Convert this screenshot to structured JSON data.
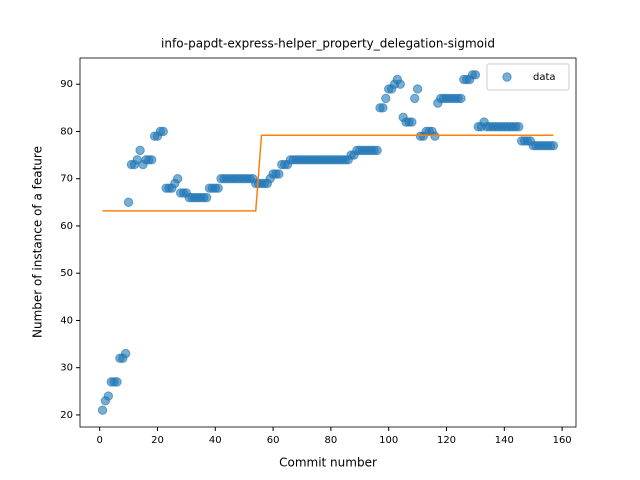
{
  "chart_data": {
    "type": "scatter",
    "title": "info-papdt-express-helper_property_delegation-sigmoid",
    "xlabel": "Commit number",
    "ylabel": "Number of instance of a feature",
    "xlim": [
      -6.8,
      164.8
    ],
    "ylim": [
      17.45,
      95.55
    ],
    "xticks": [
      0,
      20,
      40,
      60,
      80,
      100,
      120,
      140,
      160
    ],
    "yticks": [
      20,
      30,
      40,
      50,
      60,
      70,
      80,
      90
    ],
    "legend": "upper right",
    "series": [
      {
        "name": "data",
        "type": "scatter",
        "color": "#1f77b4",
        "x": [
          1,
          2,
          3,
          4,
          5,
          6,
          7,
          8,
          9,
          10,
          11,
          12,
          13,
          14,
          15,
          16,
          17,
          18,
          19,
          20,
          21,
          22,
          23,
          24,
          25,
          26,
          27,
          28,
          29,
          30,
          31,
          32,
          33,
          34,
          35,
          36,
          37,
          38,
          39,
          40,
          41,
          42,
          43,
          44,
          45,
          46,
          47,
          48,
          49,
          50,
          51,
          52,
          53,
          54,
          55,
          56,
          57,
          58,
          59,
          60,
          61,
          62,
          63,
          64,
          65,
          66,
          67,
          68,
          69,
          70,
          71,
          72,
          73,
          74,
          75,
          76,
          77,
          78,
          79,
          80,
          81,
          82,
          83,
          84,
          85,
          86,
          87,
          88,
          89,
          90,
          91,
          92,
          93,
          94,
          95,
          96,
          97,
          98,
          99,
          100,
          101,
          102,
          103,
          104,
          105,
          106,
          107,
          108,
          109,
          110,
          111,
          112,
          113,
          114,
          115,
          116,
          117,
          118,
          119,
          120,
          121,
          122,
          123,
          124,
          125,
          126,
          127,
          128,
          129,
          130,
          131,
          132,
          133,
          134,
          135,
          136,
          137,
          138,
          139,
          140,
          141,
          142,
          143,
          144,
          145,
          146,
          147,
          148,
          149,
          150,
          151,
          152,
          153,
          154,
          155,
          156,
          157
        ],
        "values": [
          21,
          23,
          24,
          27,
          27,
          27,
          32,
          32,
          33,
          65,
          73,
          73,
          74,
          76,
          73,
          74,
          74,
          74,
          79,
          79,
          80,
          80,
          68,
          68,
          68,
          69,
          70,
          67,
          67,
          67,
          66,
          66,
          66,
          66,
          66,
          66,
          66,
          68,
          68,
          68,
          68,
          70,
          70,
          70,
          70,
          70,
          70,
          70,
          70,
          70,
          70,
          70,
          70,
          69,
          69,
          69,
          69,
          69,
          70,
          71,
          71,
          71,
          73,
          73,
          73,
          74,
          74,
          74,
          74,
          74,
          74,
          74,
          74,
          74,
          74,
          74,
          74,
          74,
          74,
          74,
          74,
          74,
          74,
          74,
          74,
          74,
          75,
          75,
          76,
          76,
          76,
          76,
          76,
          76,
          76,
          76,
          85,
          85,
          87,
          89,
          89,
          90,
          91,
          90,
          83,
          82,
          82,
          82,
          87,
          89,
          79,
          79,
          80,
          80,
          80,
          79,
          86,
          87,
          87,
          87,
          87,
          87,
          87,
          87,
          87,
          91,
          91,
          91,
          92,
          92,
          81,
          81,
          82,
          81,
          81,
          81,
          81,
          81,
          81,
          81,
          81,
          81,
          81,
          81,
          81,
          78,
          78,
          78,
          78,
          77,
          77,
          77,
          77,
          77,
          77,
          77,
          77
        ]
      },
      {
        "type": "line",
        "color": "#ff7f0e",
        "x": [
          1,
          54,
          56,
          157
        ],
        "values": [
          63.2,
          63.2,
          79.2,
          79.2
        ]
      }
    ]
  }
}
